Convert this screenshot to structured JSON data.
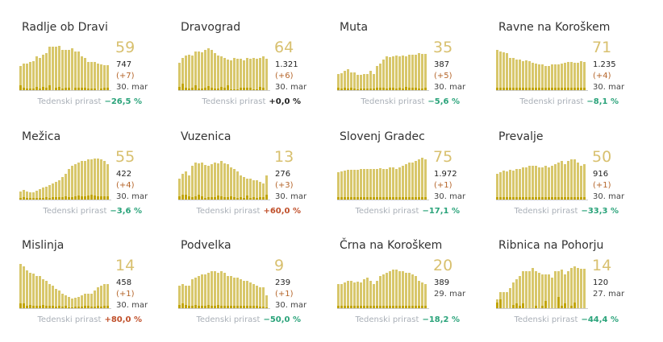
{
  "growth_label": "Tedenski prirast",
  "colors": {
    "bar": "#d8c76b",
    "bar_dark": "#c1a400",
    "negative": "#2aa37a",
    "positive": "#c0502b",
    "neutral": "#222222"
  },
  "cards": [
    {
      "name": "Radlje ob Dravi",
      "active": "59",
      "total": "747",
      "change": "(+7)",
      "date": "30. mar",
      "growth": "−26,5 %",
      "trend": "negative",
      "values": [
        30,
        33,
        33,
        35,
        36,
        42,
        40,
        44,
        46,
        54,
        54,
        54,
        55,
        50,
        50,
        50,
        52,
        48,
        48,
        42,
        40,
        35,
        35,
        35,
        33,
        32,
        31,
        31
      ],
      "dark": [
        6,
        3,
        2,
        2,
        2,
        4,
        2,
        4,
        3,
        6,
        0,
        3,
        4,
        2,
        3,
        3,
        0,
        3,
        3,
        3,
        3,
        2,
        2,
        2,
        0,
        2,
        3,
        3
      ]
    },
    {
      "name": "Dravograd",
      "active": "64",
      "total": "1.321",
      "change": "(+6)",
      "date": "30. mar",
      "growth": "+0,0 %",
      "trend": "neutral",
      "values": [
        34,
        40,
        43,
        44,
        43,
        48,
        48,
        47,
        50,
        52,
        50,
        46,
        43,
        42,
        40,
        38,
        37,
        40,
        39,
        39,
        37,
        40,
        39,
        40,
        39,
        40,
        42,
        39
      ],
      "dark": [
        4,
        8,
        3,
        2,
        3,
        6,
        2,
        2,
        3,
        5,
        3,
        2,
        2,
        4,
        3,
        6,
        1,
        1,
        1,
        3,
        3,
        3,
        3,
        1,
        1,
        4,
        3,
        0
      ]
    },
    {
      "name": "Muta",
      "active": "35",
      "total": "387",
      "change": "(+5)",
      "date": "30. mar",
      "growth": "−5,6 %",
      "trend": "negative",
      "values": [
        20,
        21,
        24,
        26,
        22,
        22,
        19,
        19,
        20,
        20,
        24,
        20,
        30,
        33,
        38,
        42,
        41,
        42,
        43,
        42,
        43,
        42,
        44,
        44,
        44,
        46,
        45,
        45
      ],
      "dark": [
        3,
        2,
        3,
        2,
        3,
        2,
        1,
        2,
        2,
        2,
        2,
        2,
        3,
        3,
        3,
        2,
        3,
        3,
        2,
        3,
        2,
        4,
        3,
        3,
        3,
        2,
        2,
        3
      ]
    },
    {
      "name": "Ravne na Koroškem",
      "active": "71",
      "total": "1.235",
      "change": "(+4)",
      "date": "30. mar",
      "growth": "−8,1 %",
      "trend": "negative",
      "values": [
        50,
        48,
        47,
        46,
        40,
        40,
        38,
        38,
        36,
        37,
        36,
        34,
        33,
        32,
        32,
        30,
        30,
        32,
        32,
        32,
        33,
        34,
        35,
        35,
        34,
        34,
        36,
        35
      ],
      "dark": [
        3,
        3,
        3,
        3,
        3,
        3,
        3,
        3,
        3,
        3,
        3,
        3,
        3,
        3,
        3,
        3,
        3,
        3,
        3,
        3,
        3,
        3,
        3,
        3,
        3,
        3,
        3,
        3
      ]
    },
    {
      "name": "Mežica",
      "active": "55",
      "total": "422",
      "change": "(+4)",
      "date": "30. mar",
      "growth": "−3,6 %",
      "trend": "negative",
      "values": [
        10,
        12,
        10,
        9,
        9,
        11,
        13,
        15,
        16,
        18,
        20,
        22,
        24,
        28,
        32,
        38,
        42,
        44,
        46,
        48,
        48,
        50,
        50,
        51,
        51,
        50,
        48,
        44
      ],
      "dark": [
        2,
        3,
        2,
        2,
        2,
        2,
        2,
        2,
        3,
        2,
        3,
        3,
        3,
        3,
        4,
        3,
        3,
        4,
        5,
        4,
        4,
        5,
        6,
        5,
        4,
        4,
        4,
        4
      ]
    },
    {
      "name": "Vuzenica",
      "active": "13",
      "total": "276",
      "change": "(+3)",
      "date": "30. mar",
      "growth": "+60,0 %",
      "trend": "positive",
      "values": [
        26,
        32,
        35,
        30,
        42,
        46,
        45,
        46,
        43,
        42,
        44,
        46,
        45,
        48,
        45,
        44,
        40,
        38,
        35,
        30,
        28,
        26,
        26,
        24,
        24,
        22,
        20,
        30
      ],
      "dark": [
        4,
        6,
        6,
        4,
        3,
        4,
        6,
        4,
        2,
        3,
        3,
        3,
        5,
        4,
        3,
        3,
        4,
        3,
        2,
        3,
        2,
        5,
        2,
        3,
        2,
        3,
        3,
        6
      ]
    },
    {
      "name": "Slovenj Gradec",
      "active": "75",
      "total": "1.972",
      "change": "(+1)",
      "date": "30. mar",
      "growth": "−17,1 %",
      "trend": "negative",
      "values": [
        34,
        35,
        36,
        37,
        37,
        37,
        37,
        38,
        38,
        38,
        38,
        38,
        38,
        39,
        38,
        38,
        40,
        40,
        38,
        40,
        42,
        44,
        46,
        46,
        48,
        50,
        52,
        50
      ],
      "dark": [
        3,
        3,
        3,
        3,
        3,
        3,
        3,
        3,
        3,
        3,
        3,
        3,
        3,
        3,
        3,
        3,
        3,
        3,
        3,
        3,
        3,
        3,
        3,
        3,
        3,
        3,
        3,
        3
      ]
    },
    {
      "name": "Prevalje",
      "active": "50",
      "total": "916",
      "change": "(+1)",
      "date": "30. mar",
      "growth": "−33,3 %",
      "trend": "negative",
      "values": [
        32,
        34,
        36,
        35,
        37,
        36,
        38,
        38,
        40,
        40,
        42,
        42,
        42,
        40,
        40,
        42,
        40,
        42,
        44,
        46,
        48,
        44,
        48,
        50,
        50,
        46,
        42,
        44
      ],
      "dark": [
        3,
        3,
        3,
        3,
        3,
        3,
        3,
        3,
        3,
        3,
        3,
        3,
        3,
        3,
        3,
        3,
        3,
        3,
        3,
        3,
        3,
        3,
        3,
        3,
        3,
        3,
        3,
        3
      ]
    },
    {
      "name": "Mislinja",
      "active": "14",
      "total": "458",
      "change": "(+1)",
      "date": "30. mar",
      "growth": "+80,0 %",
      "trend": "positive",
      "values": [
        55,
        52,
        47,
        44,
        43,
        40,
        40,
        36,
        34,
        30,
        28,
        24,
        22,
        18,
        16,
        14,
        12,
        13,
        14,
        16,
        18,
        18,
        18,
        22,
        26,
        28,
        30,
        30
      ],
      "dark": [
        6,
        6,
        3,
        4,
        3,
        3,
        3,
        4,
        3,
        3,
        3,
        2,
        3,
        2,
        3,
        1,
        1,
        2,
        2,
        2,
        3,
        3,
        2,
        2,
        3,
        2,
        3,
        3
      ]
    },
    {
      "name": "Podvelka",
      "active": "9",
      "total": "239",
      "change": "(+1)",
      "date": "30. mar",
      "growth": "−50,0 %",
      "trend": "negative",
      "values": [
        28,
        30,
        28,
        28,
        36,
        38,
        40,
        42,
        42,
        44,
        46,
        46,
        44,
        46,
        44,
        40,
        40,
        38,
        38,
        36,
        34,
        34,
        32,
        30,
        28,
        26,
        26,
        16
      ],
      "dark": [
        4,
        6,
        4,
        3,
        3,
        4,
        3,
        3,
        3,
        4,
        3,
        3,
        4,
        3,
        3,
        3,
        3,
        3,
        3,
        3,
        3,
        3,
        3,
        3,
        3,
        2,
        2,
        1
      ]
    },
    {
      "name": "Črna na Koroškem",
      "active": "20",
      "total": "389",
      "change": "",
      "date": "29. mar",
      "growth": "−18,2 %",
      "trend": "negative",
      "values": [
        30,
        30,
        32,
        34,
        34,
        32,
        33,
        32,
        36,
        38,
        34,
        30,
        34,
        40,
        42,
        44,
        46,
        48,
        48,
        46,
        46,
        44,
        44,
        42,
        40,
        34,
        32,
        30
      ],
      "dark": [
        3,
        3,
        3,
        3,
        3,
        3,
        3,
        3,
        3,
        3,
        3,
        3,
        3,
        3,
        3,
        3,
        3,
        3,
        3,
        3,
        3,
        3,
        3,
        3,
        3,
        3,
        3,
        3
      ]
    },
    {
      "name": "Ribnica na Pohorju",
      "active": "14",
      "total": "120",
      "change": "",
      "date": "27. mar",
      "growth": "−44,4 %",
      "trend": "negative",
      "values": [
        11,
        20,
        20,
        20,
        25,
        32,
        36,
        40,
        46,
        46,
        46,
        50,
        46,
        44,
        42,
        42,
        42,
        38,
        46,
        46,
        48,
        42,
        46,
        50,
        52,
        50,
        49,
        49
      ],
      "dark": [
        7,
        11,
        0,
        0,
        0,
        4,
        6,
        3,
        6,
        0,
        0,
        0,
        3,
        0,
        3,
        9,
        0,
        0,
        0,
        14,
        3,
        6,
        0,
        3,
        7,
        0,
        0,
        0
      ]
    }
  ]
}
